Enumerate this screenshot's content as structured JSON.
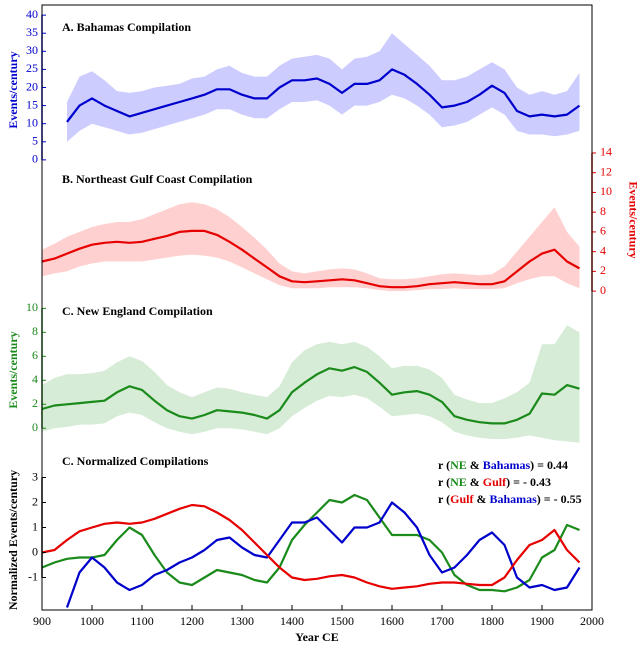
{
  "chart_data": [
    {
      "type": "line",
      "title": "A. Bahamas Compilation",
      "ylabel": "Events/century",
      "axis_side": "left",
      "color": "#0000cc",
      "band_color": "#ccccff",
      "ylim": [
        -2.8,
        42.8
      ],
      "yticks": [
        0,
        5,
        10,
        15,
        20,
        25,
        30,
        35,
        40
      ],
      "x": [
        950,
        975,
        1000,
        1025,
        1050,
        1075,
        1100,
        1125,
        1150,
        1175,
        1200,
        1225,
        1250,
        1275,
        1300,
        1325,
        1350,
        1375,
        1400,
        1425,
        1450,
        1475,
        1500,
        1525,
        1550,
        1575,
        1600,
        1625,
        1650,
        1675,
        1700,
        1725,
        1750,
        1775,
        1800,
        1825,
        1850,
        1875,
        1900,
        1925,
        1950,
        1975
      ],
      "values": [
        10.5,
        15,
        17,
        15,
        13.5,
        12,
        13,
        14,
        15,
        16,
        17,
        18,
        19.5,
        19.5,
        18,
        17,
        17,
        20,
        22,
        22,
        22.5,
        21,
        18.5,
        21,
        21,
        22,
        25,
        23.5,
        21,
        18,
        14.5,
        15,
        16,
        18,
        20.5,
        18.5,
        13.5,
        12,
        12.5,
        12,
        12.5,
        15
      ],
      "band_upper": [
        16,
        23,
        24.5,
        22,
        19,
        18.5,
        19,
        20,
        20.5,
        21,
        22.5,
        23,
        25,
        26,
        24,
        23,
        23,
        26,
        28,
        28.5,
        29,
        28,
        25,
        28,
        28.5,
        30,
        35,
        32,
        29,
        26,
        22,
        22,
        23,
        25,
        27,
        25,
        20,
        18,
        19,
        18,
        19,
        24
      ],
      "band_lower": [
        5,
        8,
        10,
        9,
        8,
        7,
        7.5,
        8.5,
        9.5,
        10.5,
        11.5,
        12.5,
        14,
        14,
        12.5,
        11.5,
        11.5,
        14,
        16,
        16,
        16.5,
        15,
        12.5,
        15,
        15,
        16,
        18,
        17,
        15,
        12.5,
        9,
        9.5,
        10.5,
        12.5,
        14.5,
        12.5,
        8,
        7,
        7,
        6.5,
        7,
        8
      ]
    },
    {
      "type": "line",
      "title": "B. Northeast Gulf Coast Compilation",
      "ylabel": "Events/century",
      "axis_side": "right",
      "color": "#e60000",
      "band_color": "#ffd0d0",
      "ylim": [
        -0.9,
        14.3
      ],
      "yticks": [
        0,
        2,
        4,
        6,
        8,
        10,
        12,
        14
      ],
      "x": [
        900,
        925,
        950,
        975,
        1000,
        1025,
        1050,
        1075,
        1100,
        1125,
        1150,
        1175,
        1200,
        1225,
        1250,
        1275,
        1300,
        1325,
        1350,
        1375,
        1400,
        1425,
        1450,
        1475,
        1500,
        1525,
        1550,
        1575,
        1600,
        1625,
        1650,
        1675,
        1700,
        1725,
        1750,
        1775,
        1800,
        1825,
        1850,
        1875,
        1900,
        1925,
        1950,
        1975
      ],
      "values": [
        3,
        3.3,
        3.8,
        4.3,
        4.7,
        4.9,
        5,
        4.9,
        5,
        5.3,
        5.6,
        6,
        6.1,
        6.1,
        5.7,
        5,
        4.2,
        3.3,
        2.4,
        1.5,
        1,
        0.9,
        1,
        1.1,
        1.2,
        1.1,
        0.8,
        0.5,
        0.4,
        0.4,
        0.5,
        0.7,
        0.8,
        0.9,
        0.8,
        0.7,
        0.7,
        1,
        2,
        3,
        3.8,
        4.2,
        3,
        2.3
      ],
      "band_upper": [
        4.2,
        4.8,
        5.5,
        6,
        6.5,
        6.8,
        7,
        7,
        7.3,
        7.8,
        8.3,
        8.8,
        9,
        8.8,
        8.3,
        7.5,
        6.5,
        5.4,
        4.2,
        2.8,
        2,
        1.8,
        2,
        2.2,
        2.3,
        2.2,
        1.8,
        1.3,
        1.2,
        1.2,
        1.3,
        1.5,
        1.7,
        1.8,
        1.7,
        1.6,
        1.7,
        2.5,
        4,
        5.5,
        7,
        8.5,
        6,
        4.5
      ],
      "band_lower": [
        1.5,
        1.8,
        2,
        2.5,
        2.8,
        3,
        3,
        3,
        3,
        3.2,
        3.4,
        3.6,
        3.7,
        3.6,
        3.4,
        3,
        2.4,
        1.8,
        1.2,
        0.6,
        0.3,
        0.3,
        0.3,
        0.4,
        0.4,
        0.4,
        0.3,
        0.1,
        0,
        0,
        0.1,
        0.2,
        0.2,
        0.3,
        0.2,
        0.2,
        0.2,
        0.3,
        0.8,
        1.2,
        1.5,
        1.5,
        0.8,
        0.3
      ]
    },
    {
      "type": "line",
      "title": "C. New England Compilation",
      "ylabel": "Events/century",
      "axis_side": "left",
      "color": "#1a8a1a",
      "band_color": "#d6ecd6",
      "ylim": [
        -1.4,
        10.7
      ],
      "yticks": [
        0,
        2,
        4,
        6,
        8,
        10
      ],
      "x": [
        900,
        925,
        950,
        975,
        1000,
        1025,
        1050,
        1075,
        1100,
        1125,
        1150,
        1175,
        1200,
        1225,
        1250,
        1275,
        1300,
        1325,
        1350,
        1375,
        1400,
        1425,
        1450,
        1475,
        1500,
        1525,
        1550,
        1575,
        1600,
        1625,
        1650,
        1675,
        1700,
        1725,
        1750,
        1775,
        1800,
        1825,
        1850,
        1875,
        1900,
        1925,
        1950,
        1975
      ],
      "values": [
        1.6,
        1.9,
        2,
        2.1,
        2.2,
        2.3,
        3,
        3.5,
        3.2,
        2.3,
        1.5,
        1,
        0.8,
        1.1,
        1.5,
        1.4,
        1.3,
        1.1,
        0.8,
        1.5,
        3,
        3.8,
        4.5,
        5,
        4.8,
        5.1,
        4.7,
        3.8,
        2.8,
        3,
        3.1,
        2.8,
        2.2,
        1,
        0.7,
        0.5,
        0.4,
        0.4,
        0.7,
        1.2,
        2.9,
        2.8,
        3.6,
        3.3
      ],
      "band_upper": [
        3.6,
        4.2,
        4.5,
        4.5,
        4.6,
        4.8,
        5.5,
        6,
        5.6,
        4.7,
        3.6,
        3,
        2.6,
        3,
        3.4,
        3.3,
        3,
        2.8,
        2.6,
        3.5,
        5.5,
        6.5,
        7,
        7.2,
        7,
        7.2,
        6.8,
        6,
        5,
        5.2,
        5.2,
        4.9,
        4.2,
        2.8,
        2.4,
        2.1,
        2.1,
        2.5,
        3,
        3.8,
        7,
        7,
        8.6,
        8
      ],
      "band_lower": [
        -0.3,
        0,
        0.1,
        0.3,
        0.3,
        0.4,
        1,
        1.3,
        1.1,
        0.5,
        0,
        -0.3,
        -0.5,
        -0.3,
        0,
        0,
        -0.1,
        -0.3,
        -0.5,
        0,
        1,
        1.7,
        2.3,
        2.7,
        2.6,
        2.8,
        2.5,
        1.8,
        1,
        1.1,
        1.2,
        1,
        0.5,
        -0.3,
        -0.6,
        -0.8,
        -0.9,
        -0.9,
        -0.8,
        -0.6,
        -0.8,
        -1,
        -1.1,
        -1.2
      ]
    },
    {
      "type": "multiline",
      "title": "C. Normalized Compilations",
      "ylabel": "Normalized Events/century",
      "axis_side": "left",
      "color": "#000000",
      "ylim": [
        -2.3,
        3.5
      ],
      "yticks": [
        -1,
        0,
        1,
        2,
        3
      ],
      "xlim": [
        900,
        2000
      ],
      "xticks": [
        900,
        1000,
        1100,
        1200,
        1300,
        1400,
        1500,
        1600,
        1700,
        1800,
        1900,
        2000
      ],
      "xlabel": "Year CE",
      "x": [
        900,
        925,
        950,
        975,
        1000,
        1025,
        1050,
        1075,
        1100,
        1125,
        1150,
        1175,
        1200,
        1225,
        1250,
        1275,
        1300,
        1325,
        1350,
        1375,
        1400,
        1425,
        1450,
        1475,
        1500,
        1525,
        1550,
        1575,
        1600,
        1625,
        1650,
        1675,
        1700,
        1725,
        1750,
        1775,
        1800,
        1825,
        1850,
        1875,
        1900,
        1925,
        1950,
        1975
      ],
      "series": [
        {
          "color": "#1a8a1a",
          "values": [
            -0.6,
            -0.4,
            -0.25,
            -0.2,
            -0.2,
            -0.1,
            0.5,
            1,
            0.7,
            -0.1,
            -0.8,
            -1.2,
            -1.3,
            -1,
            -0.7,
            -0.8,
            -0.9,
            -1.1,
            -1.2,
            -0.6,
            0.5,
            1.1,
            1.6,
            2.1,
            2,
            2.3,
            2.1,
            1.4,
            0.7,
            0.7,
            0.7,
            0.5,
            0,
            -0.9,
            -1.3,
            -1.5,
            -1.5,
            -1.55,
            -1.4,
            -1.1,
            -0.2,
            0.1,
            1.1,
            0.9
          ]
        },
        {
          "color": "#0000cc",
          "values": [
            null,
            null,
            -2.2,
            -0.8,
            -0.2,
            -0.6,
            -1.2,
            -1.5,
            -1.3,
            -0.9,
            -0.7,
            -0.4,
            -0.2,
            0.1,
            0.5,
            0.6,
            0.2,
            -0.1,
            -0.2,
            0.5,
            1.2,
            1.2,
            1.4,
            0.9,
            0.4,
            1,
            1,
            1.2,
            2,
            1.6,
            1,
            -0.1,
            -0.8,
            -0.6,
            -0.1,
            0.5,
            0.8,
            0.3,
            -1,
            -1.4,
            -1.3,
            -1.5,
            -1.4,
            -0.6
          ]
        },
        {
          "color": "#e60000",
          "values": [
            0,
            0.1,
            0.5,
            0.85,
            1,
            1.15,
            1.2,
            1.15,
            1.2,
            1.35,
            1.55,
            1.75,
            1.9,
            1.85,
            1.6,
            1.3,
            0.9,
            0.4,
            -0.1,
            -0.6,
            -1,
            -1.1,
            -1.05,
            -0.95,
            -0.9,
            -1,
            -1.2,
            -1.35,
            -1.45,
            -1.4,
            -1.35,
            -1.25,
            -1.2,
            -1.2,
            -1.25,
            -1.3,
            -1.3,
            -1,
            -0.3,
            0.3,
            0.5,
            0.9,
            0.1,
            -0.4
          ]
        }
      ],
      "annotations": [
        [
          {
            "text": "r (",
            "color": "#000000"
          },
          {
            "text": "NE",
            "color": "#1a8a1a"
          },
          {
            "text": " & ",
            "color": "#000000"
          },
          {
            "text": "Bahamas",
            "color": "#0000cc"
          },
          {
            "text": ") = 0.44",
            "color": "#000000"
          }
        ],
        [
          {
            "text": "r (",
            "color": "#000000"
          },
          {
            "text": "NE",
            "color": "#1a8a1a"
          },
          {
            "text": " & ",
            "color": "#000000"
          },
          {
            "text": "Gulf",
            "color": "#e60000"
          },
          {
            "text": ") = - 0.43",
            "color": "#000000"
          }
        ],
        [
          {
            "text": "r (",
            "color": "#000000"
          },
          {
            "text": "Gulf",
            "color": "#e60000"
          },
          {
            "text": " & ",
            "color": "#000000"
          },
          {
            "text": "Bahamas",
            "color": "#0000cc"
          },
          {
            "text": ") = - 0.55",
            "color": "#000000"
          }
        ]
      ]
    }
  ]
}
